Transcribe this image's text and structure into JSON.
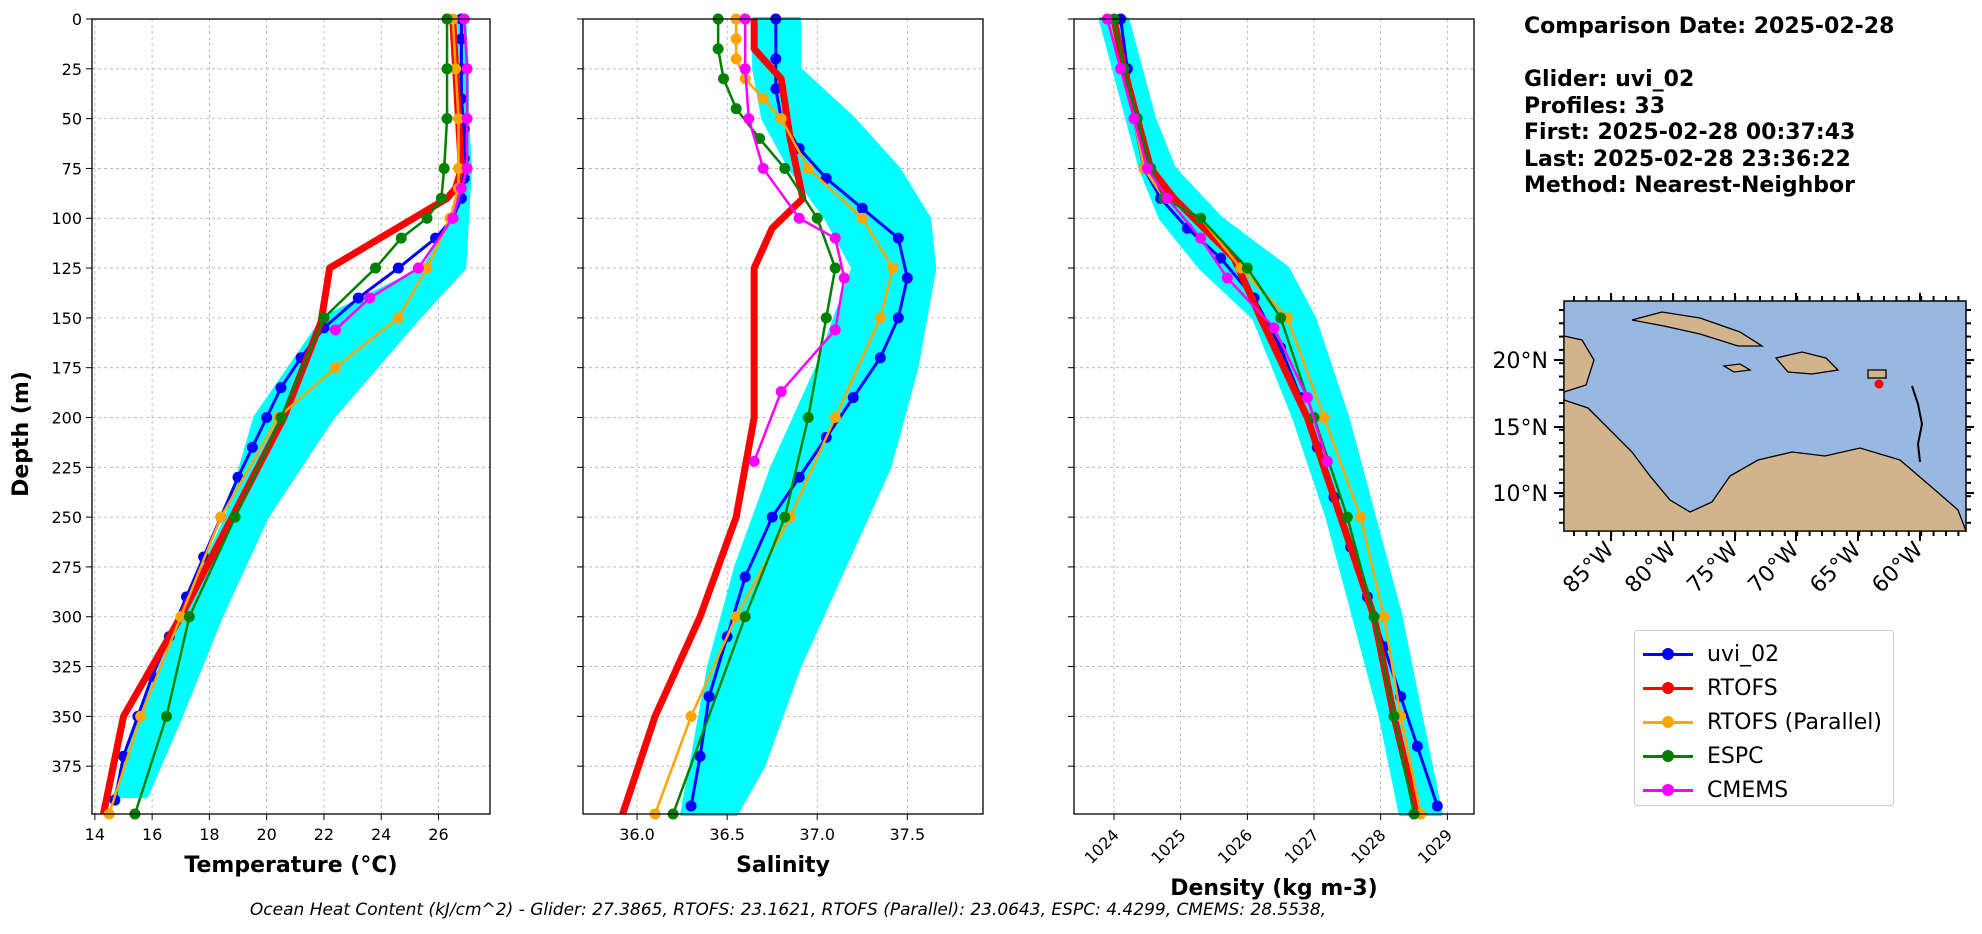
{
  "chart_data": [
    {
      "type": "line",
      "name": "temperature",
      "xlabel": "Temperature (°C)",
      "ylabel": "Depth (m)",
      "xlim": [
        13.9,
        27.8
      ],
      "ylim": [
        399,
        0
      ],
      "xticks": [
        14,
        16,
        18,
        20,
        22,
        24,
        26
      ],
      "yticks": [
        0,
        25,
        50,
        75,
        100,
        125,
        150,
        175,
        200,
        225,
        250,
        275,
        300,
        325,
        350,
        375
      ],
      "grid": true,
      "spread": [
        [
          26.7,
          0
        ],
        [
          26.9,
          0
        ],
        [
          26.8,
          25
        ],
        [
          27.0,
          25
        ],
        [
          26.8,
          50
        ],
        [
          27.0,
          50
        ],
        [
          26.9,
          75
        ],
        [
          27.1,
          75
        ],
        [
          26.5,
          100
        ],
        [
          27.0,
          100
        ],
        [
          25.5,
          125
        ],
        [
          26.9,
          125
        ],
        [
          22.0,
          150
        ],
        [
          25.3,
          150
        ],
        [
          20.8,
          175
        ],
        [
          23.8,
          175
        ],
        [
          19.6,
          200
        ],
        [
          22.3,
          200
        ],
        [
          18.6,
          250
        ],
        [
          20.0,
          250
        ],
        [
          17.0,
          300
        ],
        [
          18.4,
          300
        ],
        [
          15.6,
          350
        ],
        [
          17.0,
          350
        ],
        [
          14.7,
          390
        ],
        [
          15.8,
          390
        ]
      ],
      "series": [
        {
          "name": "uvi_02",
          "color": "#0000ff",
          "marker": true,
          "width": 3,
          "x": [
            26.8,
            26.8,
            26.8,
            26.8,
            26.9,
            26.9,
            26.9,
            26.8,
            26.5,
            25.9,
            24.6,
            23.2,
            22.0,
            21.2,
            20.5,
            20.0,
            19.5,
            19.0,
            18.4,
            17.8,
            17.2,
            16.6,
            16.0,
            15.5,
            15.0,
            14.7
          ],
          "y": [
            0,
            10,
            25,
            40,
            55,
            70,
            80,
            90,
            100,
            110,
            125,
            140,
            155,
            170,
            185,
            200,
            215,
            230,
            250,
            270,
            290,
            310,
            330,
            350,
            370,
            392
          ]
        },
        {
          "name": "RTOFS",
          "color": "#ff0000",
          "marker": false,
          "width": 7,
          "x": [
            26.5,
            26.6,
            26.7,
            26.8,
            26.6,
            26.3,
            22.2,
            21.9,
            20.6,
            17.0,
            15.0,
            14.3
          ],
          "y": [
            0,
            25,
            50,
            75,
            85,
            90,
            125,
            152,
            200,
            300,
            350,
            399
          ]
        },
        {
          "name": "RTOFS (Parallel)",
          "color": "#ffa500",
          "marker": true,
          "width": 2.5,
          "x": [
            26.5,
            26.6,
            26.7,
            26.7,
            26.7,
            26.4,
            25.6,
            24.6,
            22.4,
            20.4,
            18.4,
            17.0,
            15.6,
            14.5
          ],
          "y": [
            0,
            25,
            50,
            75,
            85,
            100,
            125,
            150,
            175,
            200,
            250,
            300,
            350,
            399
          ]
        },
        {
          "name": "ESPC",
          "color": "#008000",
          "marker": true,
          "width": 2.5,
          "x": [
            26.3,
            26.3,
            26.3,
            26.2,
            26.1,
            25.6,
            24.7,
            23.8,
            22.0,
            20.5,
            18.9,
            17.3,
            16.5,
            15.4
          ],
          "y": [
            0,
            25,
            50,
            75,
            90,
            100,
            110,
            125,
            150,
            200,
            250,
            300,
            350,
            399
          ]
        },
        {
          "name": "CMEMS",
          "color": "#ff00ff",
          "marker": true,
          "width": 2.5,
          "x": [
            26.9,
            27.0,
            27.0,
            27.0,
            26.8,
            26.5,
            25.3,
            23.6,
            22.4
          ],
          "y": [
            0,
            25,
            50,
            75,
            85,
            100,
            125,
            140,
            156
          ]
        }
      ]
    },
    {
      "type": "line",
      "name": "salinity",
      "xlabel": "Salinity",
      "xlim": [
        35.7,
        37.92
      ],
      "ylim": [
        399,
        0
      ],
      "xticks": [
        "36.0",
        "36.5",
        "37.0",
        "37.5"
      ],
      "grid": true,
      "spread": [
        [
          36.65,
          0
        ],
        [
          36.9,
          0
        ],
        [
          36.65,
          25
        ],
        [
          36.9,
          25
        ],
        [
          36.7,
          50
        ],
        [
          37.2,
          50
        ],
        [
          36.85,
          75
        ],
        [
          37.45,
          75
        ],
        [
          37.05,
          100
        ],
        [
          37.62,
          100
        ],
        [
          37.2,
          125
        ],
        [
          37.65,
          125
        ],
        [
          37.0,
          175
        ],
        [
          37.55,
          175
        ],
        [
          36.75,
          225
        ],
        [
          37.4,
          225
        ],
        [
          36.55,
          275
        ],
        [
          37.15,
          275
        ],
        [
          36.4,
          325
        ],
        [
          36.9,
          325
        ],
        [
          36.3,
          375
        ],
        [
          36.7,
          375
        ],
        [
          36.25,
          399
        ],
        [
          36.55,
          399
        ]
      ],
      "series": [
        {
          "name": "uvi_02",
          "color": "#0000ff",
          "marker": true,
          "width": 3,
          "x": [
            36.77,
            36.77,
            36.77,
            36.8,
            36.9,
            37.05,
            37.25,
            37.45,
            37.5,
            37.45,
            37.35,
            37.2,
            37.05,
            36.9,
            36.75,
            36.6,
            36.5,
            36.4,
            36.35,
            36.3
          ],
          "y": [
            0,
            20,
            35,
            50,
            65,
            80,
            95,
            110,
            130,
            150,
            170,
            190,
            210,
            230,
            250,
            280,
            310,
            340,
            370,
            395
          ]
        },
        {
          "name": "RTOFS",
          "color": "#ff0000",
          "marker": false,
          "width": 7,
          "x": [
            36.65,
            36.65,
            36.8,
            36.85,
            36.92,
            36.75,
            36.65,
            36.65,
            36.65,
            36.55,
            36.35,
            36.1,
            35.92
          ],
          "y": [
            0,
            15,
            30,
            60,
            90,
            105,
            125,
            152,
            200,
            250,
            300,
            350,
            399
          ]
        },
        {
          "name": "RTOFS (Parallel)",
          "color": "#ffa500",
          "marker": true,
          "width": 2.5,
          "x": [
            36.55,
            36.55,
            36.55,
            36.6,
            36.7,
            36.8,
            36.95,
            37.25,
            37.42,
            37.35,
            37.1,
            36.85,
            36.55,
            36.3,
            36.1
          ],
          "y": [
            0,
            10,
            20,
            30,
            40,
            50,
            75,
            100,
            125,
            150,
            200,
            250,
            300,
            350,
            399
          ]
        },
        {
          "name": "ESPC",
          "color": "#008000",
          "marker": true,
          "width": 2.5,
          "x": [
            36.45,
            36.45,
            36.48,
            36.55,
            36.68,
            36.82,
            37.0,
            37.1,
            37.05,
            36.95,
            36.82,
            36.6,
            36.2
          ],
          "y": [
            0,
            15,
            30,
            45,
            60,
            75,
            100,
            125,
            150,
            200,
            250,
            300,
            399
          ]
        },
        {
          "name": "CMEMS",
          "color": "#ff00ff",
          "marker": true,
          "width": 2.5,
          "x": [
            36.6,
            36.6,
            36.62,
            36.7,
            36.9,
            37.1,
            37.15,
            37.1,
            36.8,
            36.65
          ],
          "y": [
            0,
            25,
            50,
            75,
            100,
            110,
            130,
            156,
            187,
            222
          ]
        }
      ]
    },
    {
      "type": "line",
      "name": "density",
      "xlabel": "Density (kg m-3)",
      "xlim": [
        1023.4,
        1029.4
      ],
      "ylim": [
        399,
        0
      ],
      "xticks": [
        "1024",
        "1025",
        "1026",
        "1027",
        "1028",
        "1029"
      ],
      "grid": true,
      "spread": [
        [
          1023.8,
          0
        ],
        [
          1024.2,
          0
        ],
        [
          1024.2,
          50
        ],
        [
          1024.6,
          50
        ],
        [
          1024.4,
          75
        ],
        [
          1024.9,
          75
        ],
        [
          1024.7,
          100
        ],
        [
          1025.6,
          100
        ],
        [
          1025.3,
          125
        ],
        [
          1026.6,
          125
        ],
        [
          1026.1,
          150
        ],
        [
          1027.0,
          150
        ],
        [
          1026.7,
          200
        ],
        [
          1027.5,
          200
        ],
        [
          1027.2,
          250
        ],
        [
          1027.9,
          250
        ],
        [
          1027.6,
          300
        ],
        [
          1028.3,
          300
        ],
        [
          1028.0,
          350
        ],
        [
          1028.6,
          350
        ],
        [
          1028.3,
          399
        ],
        [
          1028.9,
          399
        ]
      ],
      "series": [
        {
          "name": "uvi_02",
          "color": "#0000ff",
          "marker": true,
          "width": 3,
          "x": [
            1024.1,
            1024.2,
            1024.3,
            1024.45,
            1024.7,
            1025.1,
            1025.6,
            1026.1,
            1026.5,
            1026.8,
            1027.05,
            1027.3,
            1027.55,
            1027.8,
            1028.05,
            1028.3,
            1028.55,
            1028.85
          ],
          "y": [
            0,
            25,
            50,
            75,
            90,
            105,
            120,
            140,
            165,
            190,
            215,
            240,
            265,
            290,
            315,
            340,
            365,
            395
          ]
        },
        {
          "name": "RTOFS",
          "color": "#ff0000",
          "marker": false,
          "width": 7,
          "x": [
            1024.0,
            1024.15,
            1024.35,
            1024.55,
            1024.9,
            1025.8,
            1026.2,
            1026.9,
            1027.4,
            1027.9,
            1028.2,
            1028.55
          ],
          "y": [
            0,
            25,
            50,
            75,
            90,
            120,
            150,
            200,
            250,
            300,
            350,
            399
          ]
        },
        {
          "name": "RTOFS (Parallel)",
          "color": "#ffa500",
          "marker": true,
          "width": 2.5,
          "x": [
            1023.9,
            1024.1,
            1024.3,
            1024.45,
            1024.75,
            1025.3,
            1025.9,
            1026.6,
            1027.15,
            1027.7,
            1028.05,
            1028.3,
            1028.6
          ],
          "y": [
            0,
            25,
            50,
            75,
            90,
            100,
            125,
            150,
            200,
            250,
            300,
            350,
            399
          ]
        },
        {
          "name": "ESPC",
          "color": "#008000",
          "marker": true,
          "width": 2.5,
          "x": [
            1024.0,
            1024.15,
            1024.35,
            1024.55,
            1024.75,
            1025.3,
            1026.0,
            1026.5,
            1027.0,
            1027.5,
            1027.9,
            1028.2,
            1028.5
          ],
          "y": [
            0,
            25,
            50,
            75,
            90,
            100,
            125,
            150,
            200,
            250,
            300,
            350,
            399
          ]
        },
        {
          "name": "CMEMS",
          "color": "#ff00ff",
          "marker": true,
          "width": 2.5,
          "x": [
            1023.9,
            1024.1,
            1024.3,
            1024.5,
            1024.8,
            1025.3,
            1025.7,
            1026.4,
            1026.9,
            1027.2
          ],
          "y": [
            0,
            25,
            50,
            75,
            90,
            110,
            130,
            155,
            190,
            222
          ]
        }
      ]
    }
  ],
  "header": {
    "comparison_date": "Comparison Date: 2025-02-28",
    "glider": "Glider: uvi_02",
    "profiles": "Profiles: 33",
    "first": "First: 2025-02-28 00:37:43",
    "last": "Last: 2025-02-28 23:36:22",
    "method": "Method: Nearest-Neighbor"
  },
  "map": {
    "lat_labels": [
      "20°N",
      "15°N",
      "10°N"
    ],
    "lon_labels": [
      "85°W",
      "80°W",
      "75°W",
      "70°W",
      "65°W",
      "60°W"
    ],
    "ocean_color": "#98b8e2",
    "land_color": "#d2b48c",
    "marker_color": "#ff0000"
  },
  "legend": [
    {
      "label": "uvi_02",
      "color": "#0000ff"
    },
    {
      "label": "RTOFS",
      "color": "#ff0000"
    },
    {
      "label": "RTOFS (Parallel)",
      "color": "#ffa500"
    },
    {
      "label": "ESPC",
      "color": "#008000"
    },
    {
      "label": "CMEMS",
      "color": "#ff00ff"
    }
  ],
  "footer": "Ocean Heat Content (kJ/cm^2) - Glider: 27.3865,  RTOFS: 23.1621,  RTOFS (Parallel): 23.0643,  ESPC: 4.4299,  CMEMS: 28.5538,",
  "spread_color": "#00ffff"
}
